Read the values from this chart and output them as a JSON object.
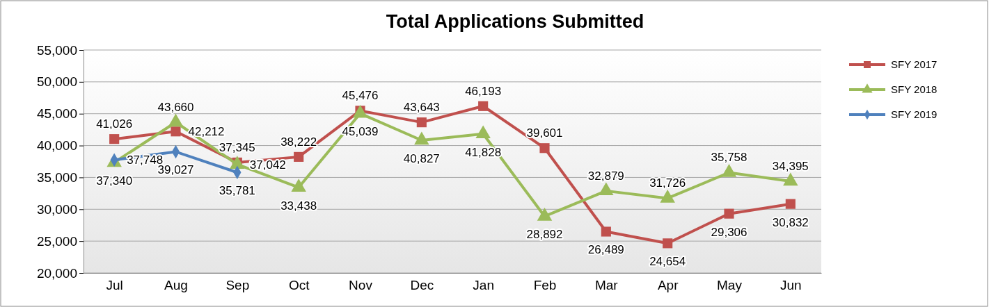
{
  "chart_data": {
    "type": "line",
    "title": "Total Applications Submitted",
    "categories": [
      "Jul",
      "Aug",
      "Sep",
      "Oct",
      "Nov",
      "Dec",
      "Jan",
      "Feb",
      "Mar",
      "Apr",
      "May",
      "Jun"
    ],
    "series": [
      {
        "name": "SFY 2017",
        "color": "#c0504d",
        "marker": "square",
        "values": [
          41026,
          42212,
          37345,
          38222,
          45476,
          43643,
          46193,
          39601,
          26489,
          24654,
          29306,
          30832
        ],
        "value_labels": [
          "41,026",
          "42,212",
          "37,345",
          "38,222",
          "45,476",
          "43,643",
          "46,193",
          "39,601",
          "26,489",
          "24,654",
          "29,306",
          "30,832"
        ]
      },
      {
        "name": "SFY 2018",
        "color": "#9bbb59",
        "marker": "triangle",
        "values": [
          37340,
          43660,
          37042,
          33438,
          45039,
          40827,
          41828,
          28892,
          32879,
          31726,
          35758,
          34395
        ],
        "value_labels": [
          "37,340",
          "43,660",
          "37,042",
          "33,438",
          "45,039",
          "40,827",
          "41,828",
          "28,892",
          "32,879",
          "31,726",
          "35,758",
          "34,395"
        ]
      },
      {
        "name": "SFY 2019",
        "color": "#4f81bd",
        "marker": "diamond",
        "values": [
          37748,
          39027,
          35781,
          null,
          null,
          null,
          null,
          null,
          null,
          null,
          null,
          null
        ],
        "value_labels": [
          "37,748",
          "39,027",
          "35,781",
          null,
          null,
          null,
          null,
          null,
          null,
          null,
          null,
          null
        ]
      }
    ],
    "ylim": [
      20000,
      55000
    ],
    "yticks": [
      {
        "value": 20000,
        "label": "20,000"
      },
      {
        "value": 25000,
        "label": "25,000"
      },
      {
        "value": 30000,
        "label": "30,000"
      },
      {
        "value": 35000,
        "label": "35,000"
      },
      {
        "value": 40000,
        "label": "40,000"
      },
      {
        "value": 45000,
        "label": "45,000"
      },
      {
        "value": 50000,
        "label": "50,000"
      },
      {
        "value": 55000,
        "label": "55,000"
      }
    ],
    "grid": "y",
    "legend": "right"
  }
}
